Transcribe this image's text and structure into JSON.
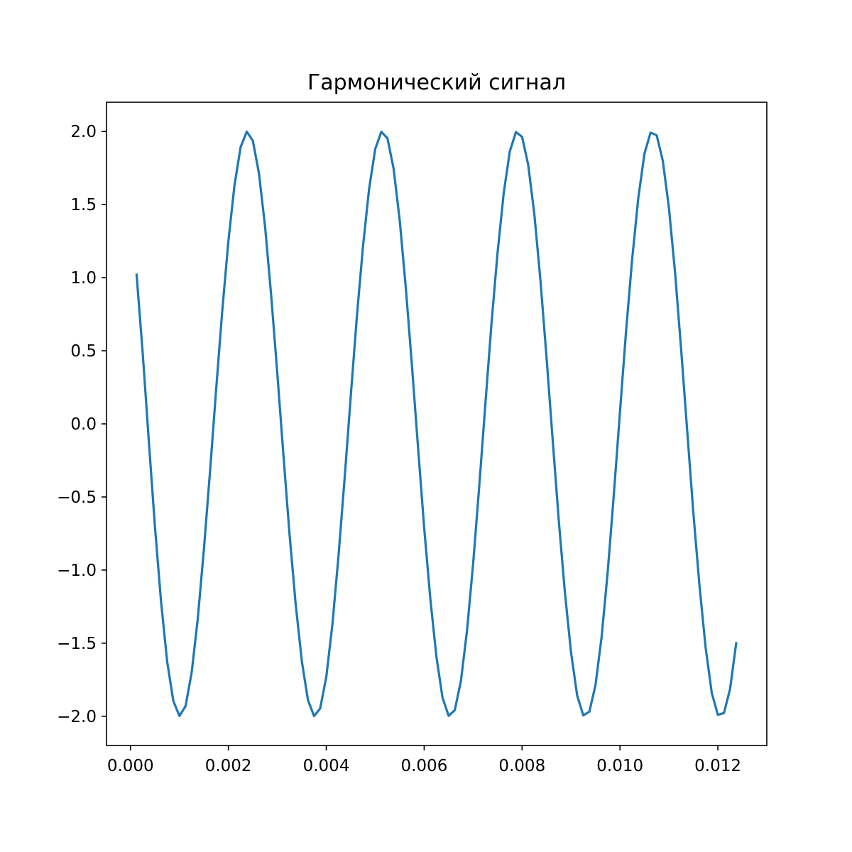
{
  "chart_data": {
    "type": "line",
    "title": "Гармонический сигнал",
    "xlabel": "",
    "ylabel": "",
    "xlim": [
      -0.00049,
      0.013
    ],
    "ylim": [
      -2.2,
      2.2
    ],
    "grid": false,
    "legend": "none",
    "x_ticks": [
      "0.000",
      "0.002",
      "0.004",
      "0.006",
      "0.008",
      "0.010",
      "0.012"
    ],
    "x_tick_values": [
      0,
      0.002,
      0.004,
      0.006,
      0.008,
      0.01,
      0.012
    ],
    "y_ticks": [
      "−2.0",
      "−1.5",
      "−1.0",
      "−0.5",
      "0.0",
      "0.5",
      "1.0",
      "1.5",
      "2.0"
    ],
    "y_tick_values": [
      -2.0,
      -1.5,
      -1.0,
      -0.5,
      0.0,
      0.5,
      1.0,
      1.5,
      2.0
    ],
    "series": [
      {
        "color": "#1f77b4",
        "x": [
          0.000125,
          0.00025,
          0.000375,
          0.0005,
          0.000625,
          0.00075,
          0.000875,
          0.001,
          0.001125,
          0.00125,
          0.001375,
          0.0015,
          0.001625,
          0.00175,
          0.001875,
          0.002,
          0.002125,
          0.00225,
          0.002375,
          0.0025,
          0.002625,
          0.00275,
          0.002875,
          0.003,
          0.003125,
          0.00325,
          0.003375,
          0.0035,
          0.003625,
          0.00375,
          0.003875,
          0.004,
          0.004125,
          0.00425,
          0.004375,
          0.0045,
          0.004625,
          0.00475,
          0.004875,
          0.005,
          0.005125,
          0.00525,
          0.005375,
          0.0055,
          0.005625,
          0.00575,
          0.005875,
          0.006,
          0.006125,
          0.00625,
          0.006375,
          0.0065,
          0.006625,
          0.00675,
          0.006875,
          0.007,
          0.007125,
          0.00725,
          0.007375,
          0.0075,
          0.007625,
          0.00775,
          0.007875,
          0.008,
          0.008125,
          0.00825,
          0.008375,
          0.0085,
          0.008625,
          0.00875,
          0.008875,
          0.009,
          0.009125,
          0.00925,
          0.009375,
          0.0095,
          0.009625,
          0.00975,
          0.009875,
          0.01,
          0.010125,
          0.01025,
          0.010375,
          0.0105,
          0.010625,
          0.01075,
          0.010875,
          0.011,
          0.011125,
          0.01125,
          0.011375,
          0.0115,
          0.011625,
          0.01175,
          0.011875,
          0.012,
          0.012125,
          0.01225,
          0.012375
        ],
        "y": [
          1.02,
          0.482,
          -0.12,
          -0.705,
          -1.218,
          -1.628,
          -1.895,
          -1.998,
          -1.931,
          -1.7,
          -1.331,
          -0.858,
          -0.325,
          0.236,
          0.773,
          1.25,
          1.633,
          1.893,
          1.999,
          1.937,
          1.713,
          1.348,
          0.876,
          0.344,
          -0.216,
          -0.758,
          -1.234,
          -1.622,
          -1.888,
          -1.999,
          -1.947,
          -1.732,
          -1.372,
          -0.902,
          -0.371,
          0.189,
          0.734,
          1.214,
          1.607,
          1.88,
          1.998,
          1.953,
          1.746,
          1.394,
          0.93,
          0.399,
          -0.162,
          -0.71,
          -1.194,
          -1.593,
          -1.873,
          -1.997,
          -1.958,
          -1.76,
          -1.415,
          -0.957,
          -0.427,
          0.135,
          0.685,
          1.173,
          1.578,
          1.865,
          1.996,
          1.964,
          1.773,
          1.437,
          0.984,
          0.454,
          -0.108,
          -0.661,
          -1.152,
          -1.562,
          -1.857,
          -1.994,
          -1.969,
          -1.787,
          -1.458,
          -1.011,
          -0.482,
          0.08,
          0.636,
          1.13,
          1.546,
          1.848,
          1.992,
          1.974,
          1.8,
          1.479,
          1.038,
          0.509,
          -0.053,
          -0.611,
          -1.108,
          -1.53,
          -1.839,
          -1.99,
          -1.978,
          -1.812,
          -1.5
        ]
      }
    ]
  }
}
